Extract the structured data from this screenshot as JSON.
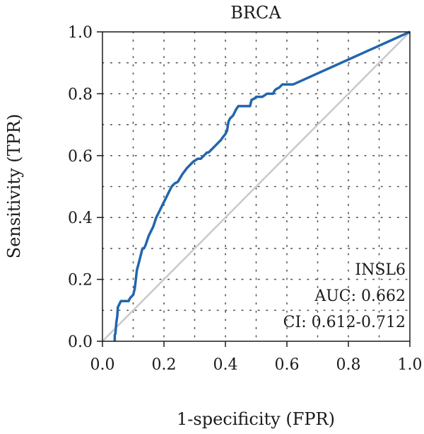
{
  "chart_data": {
    "type": "line",
    "title": "BRCA",
    "xlabel": "1-specificity (FPR)",
    "ylabel": "Sensitivity (TPR)",
    "xlim": [
      0.0,
      1.0
    ],
    "ylim": [
      0.0,
      1.0
    ],
    "xticks": [
      "0.0",
      "0.2",
      "0.4",
      "0.6",
      "0.8",
      "1.0"
    ],
    "yticks": [
      "0.0",
      "0.2",
      "0.4",
      "0.6",
      "0.8",
      "1.0"
    ],
    "grid": true,
    "annotations": [
      "INSL6",
      "AUC: 0.662",
      "CI: 0.612-0.712"
    ],
    "colors": {
      "roc": "#2166ac",
      "diagonal": "#c8c8d0"
    },
    "series": [
      {
        "x": [
          0.04,
          0.04,
          0.042,
          0.045,
          0.048,
          0.05,
          0.055,
          0.06,
          0.07,
          0.085,
          0.09,
          0.1,
          0.105,
          0.112,
          0.12,
          0.125,
          0.13,
          0.135,
          0.14,
          0.15,
          0.16,
          0.165,
          0.175,
          0.185,
          0.195,
          0.205,
          0.215,
          0.225,
          0.235,
          0.245,
          0.26,
          0.275,
          0.285,
          0.295,
          0.31,
          0.32,
          0.33,
          0.34,
          0.345,
          0.355,
          0.365,
          0.375,
          0.385,
          0.392,
          0.4,
          0.405,
          0.41,
          0.415,
          0.425,
          0.435,
          0.442,
          0.45,
          0.48,
          0.485,
          0.495,
          0.5,
          0.52,
          0.535,
          0.555,
          0.56,
          0.565,
          0.575,
          0.585,
          0.6,
          0.62,
          1.0
        ],
        "y": [
          0.0,
          0.02,
          0.025,
          0.06,
          0.08,
          0.11,
          0.12,
          0.13,
          0.13,
          0.13,
          0.14,
          0.15,
          0.17,
          0.23,
          0.26,
          0.28,
          0.3,
          0.3,
          0.31,
          0.34,
          0.36,
          0.37,
          0.4,
          0.42,
          0.44,
          0.46,
          0.48,
          0.5,
          0.51,
          0.515,
          0.54,
          0.56,
          0.57,
          0.58,
          0.59,
          0.59,
          0.6,
          0.61,
          0.61,
          0.62,
          0.63,
          0.64,
          0.65,
          0.66,
          0.67,
          0.68,
          0.71,
          0.72,
          0.73,
          0.75,
          0.76,
          0.76,
          0.76,
          0.78,
          0.785,
          0.79,
          0.79,
          0.8,
          0.8,
          0.81,
          0.815,
          0.82,
          0.83,
          0.83,
          0.83,
          1.0
        ]
      }
    ]
  }
}
